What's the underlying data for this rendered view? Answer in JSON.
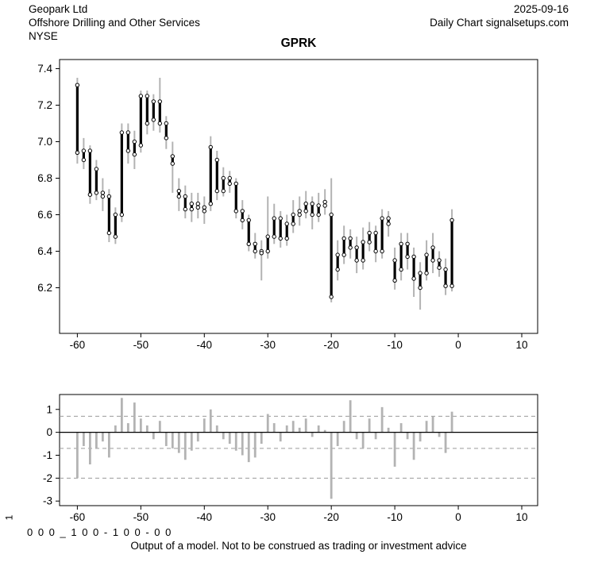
{
  "header": {
    "company": "Geopark Ltd",
    "date": "2025-09-16",
    "industry": "Offshore Drilling and Other Services",
    "source": "Daily Chart signalsetups.com",
    "exchange": "NYSE",
    "ticker": "GPRK"
  },
  "footer": {
    "axis_label": "1",
    "signal_string": "0 0 0 _ 1 0 0 - 1 0 0 - 0 0",
    "disclaimer": "Output of a model. Not to be construed as trading or investment advice"
  },
  "colors": {
    "background": "#ffffff",
    "text": "#000000",
    "whisker_gray": "#b3b3b3",
    "ohlc_black": "#000000",
    "circle_fill": "#ffffff",
    "signal_bar_gray": "#b3b3b3",
    "dashed_line": "#9a9a9a",
    "axis": "#000000"
  },
  "chart_data": [
    {
      "type": "bar",
      "subtype": "ohlc-hilo",
      "title": "GPRK",
      "xlabel": "",
      "ylabel": "",
      "grid": false,
      "legend": "none",
      "xlim": [
        -62.8,
        12.5
      ],
      "ylim": [
        5.95,
        7.45
      ],
      "x_ticks": [
        -60,
        -50,
        -40,
        -30,
        -20,
        -10,
        0,
        10
      ],
      "x_tick_labels": [
        "-60",
        "-50",
        "-40",
        "-30",
        "-20",
        "-10",
        "0",
        "10"
      ],
      "y_ticks": [
        6.2,
        6.4,
        6.6,
        6.8,
        7.0,
        7.2,
        7.4
      ],
      "y_tick_labels": [
        "6.2",
        "6.4",
        "6.6",
        "6.8",
        "7.0",
        "7.2",
        "7.4"
      ],
      "series": {
        "x": [
          -60,
          -59,
          -58,
          -57,
          -56,
          -55,
          -54,
          -53,
          -52,
          -51,
          -50,
          -49,
          -48,
          -47,
          -46,
          -45,
          -44,
          -43,
          -42,
          -41,
          -40,
          -39,
          -38,
          -37,
          -36,
          -35,
          -34,
          -33,
          -32,
          -31,
          -30,
          -29,
          -28,
          -27,
          -26,
          -25,
          -24,
          -23,
          -22,
          -21,
          -20,
          -19,
          -18,
          -17,
          -16,
          -15,
          -14,
          -13,
          -12,
          -11,
          -10,
          -9,
          -8,
          -7,
          -6,
          -5,
          -4,
          -3,
          -2,
          -1
        ],
        "open": [
          7.31,
          6.9,
          6.95,
          6.85,
          6.72,
          6.7,
          6.48,
          6.6,
          7.05,
          6.93,
          6.98,
          7.25,
          7.12,
          7.22,
          7.1,
          6.92,
          6.73,
          6.7,
          6.63,
          6.66,
          6.64,
          6.66,
          6.9,
          6.73,
          6.8,
          6.77,
          6.62,
          6.57,
          6.44,
          6.4,
          6.4,
          6.48,
          6.58,
          6.47,
          6.55,
          6.6,
          6.62,
          6.66,
          6.6,
          6.65,
          6.6,
          6.3,
          6.38,
          6.47,
          6.42,
          6.35,
          6.45,
          6.5,
          6.4,
          6.58,
          6.35,
          6.3,
          6.44,
          6.37,
          6.2,
          6.28,
          6.42,
          6.35,
          6.3,
          6.21
        ],
        "close": [
          6.94,
          6.95,
          6.71,
          6.72,
          6.7,
          6.5,
          6.6,
          7.05,
          6.95,
          7.0,
          7.25,
          7.1,
          7.22,
          7.1,
          7.02,
          6.88,
          6.7,
          6.63,
          6.66,
          6.64,
          6.62,
          6.97,
          6.73,
          6.8,
          6.77,
          6.62,
          6.57,
          6.44,
          6.4,
          6.39,
          6.48,
          6.58,
          6.47,
          6.55,
          6.6,
          6.62,
          6.66,
          6.6,
          6.65,
          6.67,
          6.15,
          6.38,
          6.47,
          6.42,
          6.35,
          6.45,
          6.5,
          6.4,
          6.58,
          6.55,
          6.24,
          6.44,
          6.37,
          6.25,
          6.28,
          6.38,
          6.35,
          6.31,
          6.21,
          6.57
        ],
        "high": [
          7.35,
          7.02,
          6.98,
          6.9,
          6.8,
          6.74,
          6.64,
          7.1,
          7.1,
          7.06,
          7.28,
          7.28,
          7.26,
          7.35,
          7.14,
          7.0,
          6.8,
          6.76,
          6.72,
          6.72,
          6.7,
          7.03,
          6.95,
          6.86,
          6.84,
          6.8,
          6.68,
          6.6,
          6.5,
          6.46,
          6.7,
          6.66,
          6.62,
          6.6,
          6.68,
          6.7,
          6.73,
          6.7,
          6.72,
          6.74,
          6.8,
          6.46,
          6.54,
          6.52,
          6.48,
          6.53,
          6.56,
          6.54,
          6.63,
          6.62,
          6.42,
          6.5,
          6.5,
          6.42,
          6.34,
          6.46,
          6.5,
          6.4,
          6.36,
          6.63
        ],
        "low": [
          6.88,
          6.85,
          6.66,
          6.68,
          6.62,
          6.45,
          6.44,
          6.56,
          6.88,
          6.85,
          6.94,
          7.04,
          7.06,
          7.05,
          6.96,
          6.72,
          6.62,
          6.58,
          6.56,
          6.58,
          6.55,
          6.62,
          6.68,
          6.7,
          6.72,
          6.58,
          6.52,
          6.4,
          6.36,
          6.24,
          6.36,
          6.44,
          6.42,
          6.43,
          6.5,
          6.54,
          6.58,
          6.52,
          6.56,
          6.6,
          6.12,
          6.24,
          6.33,
          6.36,
          6.28,
          6.3,
          6.4,
          6.34,
          6.36,
          6.48,
          6.19,
          6.24,
          6.3,
          6.15,
          6.08,
          6.24,
          6.28,
          6.26,
          6.16,
          6.18
        ]
      }
    },
    {
      "type": "bar",
      "subtype": "signal-histogram",
      "title": "",
      "xlabel": "",
      "ylabel": "1",
      "grid": false,
      "legend": "none",
      "xlim": [
        -62.8,
        12.5
      ],
      "ylim": [
        -3.2,
        1.65
      ],
      "x_ticks": [
        -60,
        -50,
        -40,
        -30,
        -20,
        -10,
        0,
        10
      ],
      "x_tick_labels": [
        "-60",
        "-50",
        "-40",
        "-30",
        "-20",
        "-10",
        "0",
        "10"
      ],
      "y_ticks": [
        1,
        0,
        -1,
        -2,
        -3
      ],
      "y_tick_labels": [
        "1",
        "0",
        "-1",
        "-2",
        "-3"
      ],
      "zero_line": 0,
      "dashed_lines": [
        0.7,
        -0.7,
        -2.0
      ],
      "x": [
        -60,
        -59,
        -58,
        -57,
        -56,
        -55,
        -54,
        -53,
        -52,
        -51,
        -50,
        -49,
        -48,
        -47,
        -46,
        -45,
        -44,
        -43,
        -42,
        -41,
        -40,
        -39,
        -38,
        -37,
        -36,
        -35,
        -34,
        -33,
        -32,
        -31,
        -30,
        -29,
        -28,
        -27,
        -26,
        -25,
        -24,
        -23,
        -22,
        -21,
        -20,
        -19,
        -18,
        -17,
        -16,
        -15,
        -14,
        -13,
        -12,
        -11,
        -10,
        -9,
        -8,
        -7,
        -6,
        -5,
        -4,
        -3,
        -2,
        -1
      ],
      "values": [
        -2.0,
        -0.6,
        -1.4,
        -0.7,
        -0.4,
        -1.1,
        0.3,
        1.5,
        0.4,
        1.3,
        0.6,
        0.3,
        -0.3,
        0.5,
        -0.6,
        -0.7,
        -0.9,
        -1.2,
        -0.8,
        -0.4,
        0.6,
        1.0,
        0.3,
        -0.3,
        -0.5,
        -0.8,
        -1.0,
        -1.3,
        -1.1,
        -0.5,
        0.8,
        0.4,
        -0.4,
        0.3,
        0.5,
        0.2,
        0.6,
        -0.2,
        0.3,
        0.1,
        -2.9,
        -0.6,
        0.5,
        1.4,
        -0.3,
        -0.7,
        0.6,
        -0.3,
        1.1,
        0.2,
        -1.5,
        0.4,
        -0.3,
        -1.2,
        -0.4,
        0.5,
        0.7,
        -0.2,
        -0.9,
        0.9
      ]
    }
  ]
}
